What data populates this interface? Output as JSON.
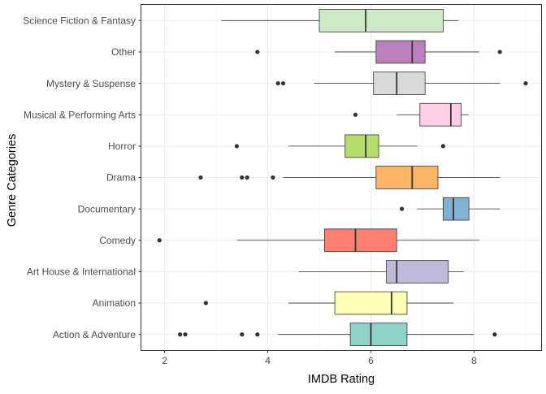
{
  "chart_data": {
    "type": "boxplot",
    "orientation": "horizontal",
    "title": "",
    "xlabel": "IMDB Rating",
    "ylabel": "Genre Categories",
    "xlim": [
      1.55,
      9.3
    ],
    "xticks": [
      2,
      4,
      6,
      8
    ],
    "grid": true,
    "legend": "none",
    "categories": [
      "Action & Adventure",
      "Animation",
      "Art House & International",
      "Comedy",
      "Documentary",
      "Drama",
      "Horror",
      "Musical & Performing Arts",
      "Mystery & Suspense",
      "Other",
      "Science Fiction & Fantasy"
    ],
    "boxes": [
      {
        "category": "Action & Adventure",
        "whisker_low": 4.2,
        "q1": 5.6,
        "median": 6.0,
        "q3": 6.7,
        "whisker_high": 8.0,
        "outliers": [
          2.3,
          2.4,
          3.5,
          3.8,
          8.4
        ],
        "color": "#8dd3c7"
      },
      {
        "category": "Animation",
        "whisker_low": 4.4,
        "q1": 5.3,
        "median": 6.4,
        "q3": 6.7,
        "whisker_high": 7.6,
        "outliers": [
          2.8
        ],
        "color": "#ffffb3"
      },
      {
        "category": "Art House & International",
        "whisker_low": 4.6,
        "q1": 6.3,
        "median": 6.5,
        "q3": 7.5,
        "whisker_high": 7.8,
        "outliers": [],
        "color": "#bebada"
      },
      {
        "category": "Comedy",
        "whisker_low": 3.4,
        "q1": 5.1,
        "median": 5.7,
        "q3": 6.5,
        "whisker_high": 8.1,
        "outliers": [
          1.9
        ],
        "color": "#fb8072"
      },
      {
        "category": "Documentary",
        "whisker_low": 6.9,
        "q1": 7.4,
        "median": 7.6,
        "q3": 7.9,
        "whisker_high": 8.5,
        "outliers": [
          6.6
        ],
        "color": "#80b1d3"
      },
      {
        "category": "Drama",
        "whisker_low": 4.3,
        "q1": 6.1,
        "median": 6.8,
        "q3": 7.3,
        "whisker_high": 8.5,
        "outliers": [
          2.7,
          3.5,
          3.6,
          4.1
        ],
        "color": "#fdb462"
      },
      {
        "category": "Horror",
        "whisker_low": 4.4,
        "q1": 5.5,
        "median": 5.9,
        "q3": 6.15,
        "whisker_high": 6.9,
        "outliers": [
          3.4,
          7.4
        ],
        "color": "#b3de69"
      },
      {
        "category": "Musical & Performing Arts",
        "whisker_low": 6.5,
        "q1": 6.95,
        "median": 7.55,
        "q3": 7.75,
        "whisker_high": 7.9,
        "outliers": [
          5.7
        ],
        "color": "#fccde5"
      },
      {
        "category": "Mystery & Suspense",
        "whisker_low": 4.9,
        "q1": 6.05,
        "median": 6.5,
        "q3": 7.05,
        "whisker_high": 8.5,
        "outliers": [
          4.2,
          4.3,
          9.0
        ],
        "color": "#d9d9d9"
      },
      {
        "category": "Other",
        "whisker_low": 5.3,
        "q1": 6.1,
        "median": 6.8,
        "q3": 7.05,
        "whisker_high": 8.1,
        "outliers": [
          3.8,
          8.5
        ],
        "color": "#bc80bd"
      },
      {
        "category": "Science Fiction & Fantasy",
        "whisker_low": 3.1,
        "q1": 5.0,
        "median": 5.9,
        "q3": 7.4,
        "whisker_high": 7.7,
        "outliers": [],
        "color": "#ccebc5"
      }
    ]
  }
}
